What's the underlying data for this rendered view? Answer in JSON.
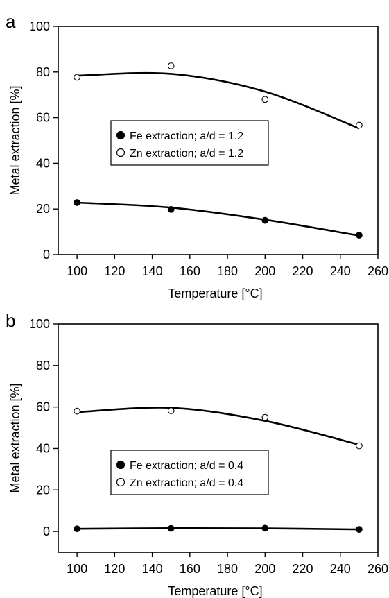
{
  "chart_data": [
    {
      "panel": "a",
      "type": "scatter",
      "xlabel": "Temperature [°C]",
      "ylabel": "Metal extraction [%]",
      "xlim": [
        90,
        260
      ],
      "ylim": [
        0,
        100
      ],
      "xticks": [
        100,
        120,
        140,
        160,
        180,
        200,
        220,
        240,
        260
      ],
      "yticks": [
        0,
        20,
        40,
        60,
        80,
        100
      ],
      "x_tick_labels": [
        "100",
        "120",
        "140",
        "160",
        "180",
        "200",
        "220",
        "240",
        "260"
      ],
      "y_tick_labels": [
        "0",
        "20",
        "40",
        "60",
        "80",
        "100"
      ],
      "legend_position": "center-left",
      "grid": false,
      "series": [
        {
          "name": "Fe extraction; a/d = 1.2",
          "marker": "filled-circle",
          "x": [
            100,
            150,
            200,
            250
          ],
          "y": [
            22.8,
            19.8,
            15,
            8.5
          ],
          "fit_curve": [
            [
              100,
              22.8
            ],
            [
              150,
              20.6
            ],
            [
              200,
              15.3
            ],
            [
              250,
              8.3
            ]
          ]
        },
        {
          "name": "Zn extraction; a/d = 1.2",
          "marker": "open-circle",
          "x": [
            100,
            150,
            200,
            250
          ],
          "y": [
            77.7,
            82.7,
            68,
            56.7
          ],
          "fit_curve": [
            [
              100,
              78.4
            ],
            [
              150,
              79.2
            ],
            [
              200,
              71.4
            ],
            [
              250,
              55.3
            ]
          ]
        }
      ]
    },
    {
      "panel": "b",
      "type": "scatter",
      "xlabel": "Temperature [°C]",
      "ylabel": "Metal extraction [%]",
      "xlim": [
        90,
        260
      ],
      "ylim": [
        -10,
        100
      ],
      "xticks": [
        100,
        120,
        140,
        160,
        180,
        200,
        220,
        240,
        260
      ],
      "yticks": [
        0,
        20,
        40,
        60,
        80,
        100
      ],
      "x_tick_labels": [
        "100",
        "120",
        "140",
        "160",
        "180",
        "200",
        "220",
        "240",
        "260"
      ],
      "y_tick_labels": [
        "0",
        "20",
        "40",
        "60",
        "80",
        "100"
      ],
      "legend_position": "center-left",
      "grid": false,
      "series": [
        {
          "name": "Fe extraction; a/d = 0.4",
          "marker": "filled-circle",
          "x": [
            100,
            150,
            200,
            250
          ],
          "y": [
            1.3,
            1.5,
            1.6,
            1.0
          ],
          "fit_curve": [
            [
              100,
              1.3
            ],
            [
              150,
              1.6
            ],
            [
              200,
              1.5
            ],
            [
              250,
              1.0
            ]
          ]
        },
        {
          "name": "Zn extraction; a/d = 0.4",
          "marker": "open-circle",
          "x": [
            100,
            150,
            200,
            250
          ],
          "y": [
            58,
            58.2,
            55,
            41.3
          ],
          "fit_curve": [
            [
              100,
              57.5
            ],
            [
              150,
              59.6
            ],
            [
              200,
              53.3
            ],
            [
              250,
              41.8
            ]
          ]
        }
      ]
    }
  ]
}
